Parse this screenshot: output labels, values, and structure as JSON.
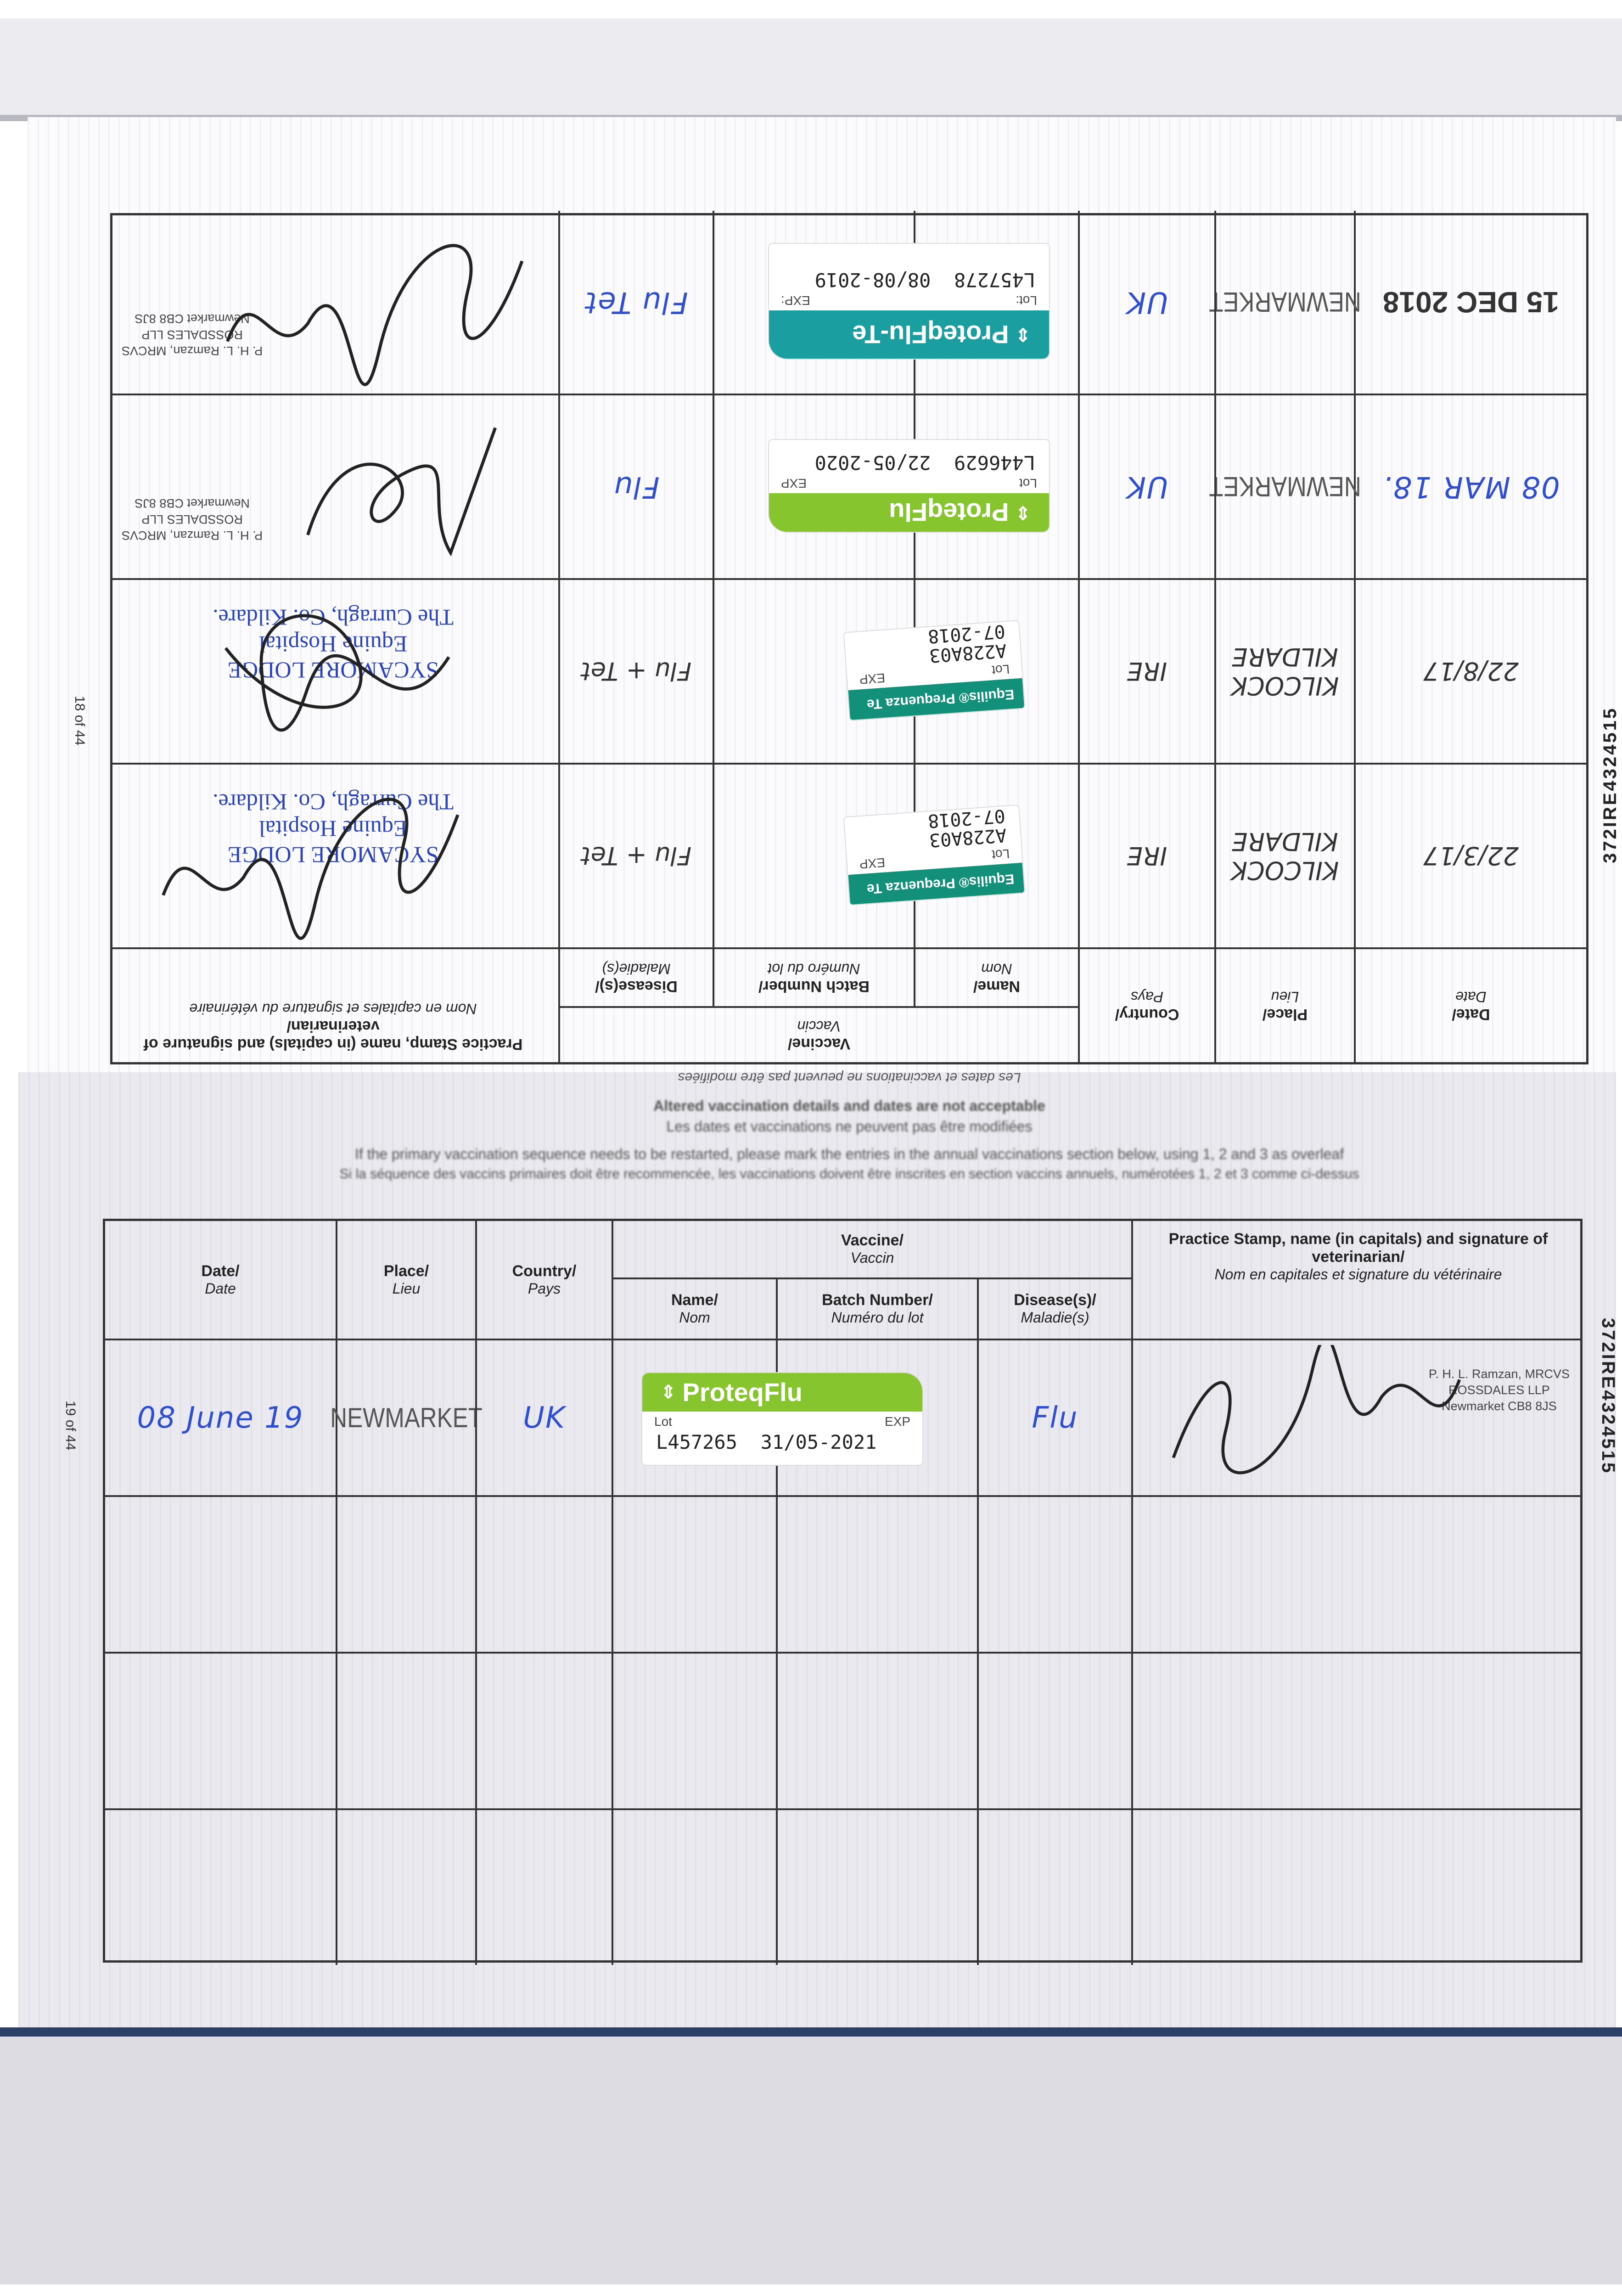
{
  "passport_number": "372IRE4324515",
  "headers": {
    "date": [
      "Date/",
      "Date"
    ],
    "place": [
      "Place/",
      "Lieu"
    ],
    "country": [
      "Country/",
      "Pays"
    ],
    "vaccine": [
      "Vaccine/",
      "Vaccin"
    ],
    "name": [
      "Name/",
      "Nom"
    ],
    "batch": [
      "Batch Number/",
      "Numéro du lot"
    ],
    "disease": [
      "Disease(s)/",
      "Maladie(s)"
    ],
    "stamp": [
      "Practice Stamp, name (in capitals) and signature of veterinarian/",
      "Nom en capitales et signature du vétérinaire"
    ]
  },
  "page18": {
    "page_label": "18 of 44",
    "notice": "Les dates et vaccinations ne peuvent pas être modifiées",
    "rows": [
      {
        "date": "22/3/17",
        "date_style": "hand-dark",
        "place": "KILCOCK KILDARE",
        "place_style": "hand-dark",
        "country": "IRE",
        "country_style": "hand-dark",
        "sticker": {
          "type": "equilis",
          "brand": "Equilis® Prequenza Te",
          "brand_sub": "",
          "lot_label": "Lot",
          "exp_label": "EXP",
          "lot": "A228A03",
          "exp": "07-2018",
          "color": "#12907a"
        },
        "disease": "Flu + Tet",
        "disease_style": "hand-dark",
        "stamp_type": "sycamore",
        "stamp_lines": [
          "SYCAMORE LODGE",
          "Equine Hospital",
          "The Curragh, Co. Kildare."
        ]
      },
      {
        "date": "22/8/17",
        "date_style": "hand-dark",
        "place": "KILCOCK KILDARE",
        "place_style": "hand-dark",
        "country": "IRE",
        "country_style": "hand-dark",
        "sticker": {
          "type": "equilis",
          "brand": "Equilis® Prequenza Te",
          "brand_sub": "",
          "lot_label": "Lot",
          "exp_label": "EXP",
          "lot": "A228A03",
          "exp": "07-2018",
          "color": "#12907a"
        },
        "disease": "Flu + Tet",
        "disease_style": "hand-dark",
        "stamp_type": "sycamore",
        "stamp_lines": [
          "SYCAMORE LODGE",
          "Equine Hospital",
          "The Curragh, Co. Kildare."
        ]
      },
      {
        "date": "08 MAR 18.",
        "date_style": "hand",
        "place": "NEWMARKET",
        "place_style": "placestamp",
        "country": "UK",
        "country_style": "hand",
        "sticker": {
          "type": "proteq",
          "brand": "ProteqFlu",
          "brand_sub": "",
          "lot_label": "Lot",
          "exp_label": "EXP",
          "lot": "L446629",
          "exp": "22/05-2020",
          "color": "#86c52e"
        },
        "disease": "Flu",
        "disease_style": "hand",
        "stamp_type": "ramzan",
        "stamp_lines": [
          "P. H. L. Ramzan, MRCVS",
          "ROSSDALES LLP",
          "Newmarket CB8 8JS"
        ]
      },
      {
        "date": "15 DEC 2018",
        "date_style": "datestamp",
        "place": "NEWMARKET",
        "place_style": "placestamp",
        "country": "UK",
        "country_style": "hand",
        "sticker": {
          "type": "proteq-te",
          "brand": "ProteqFlu-Te",
          "brand_sub": "",
          "lot_label": "Lot:",
          "exp_label": "EXP:",
          "lot": "L457278",
          "exp": "08/08-2019",
          "color": "#1a9ea0"
        },
        "disease": "Flu Tet",
        "disease_style": "hand",
        "stamp_type": "ramzan",
        "stamp_lines": [
          "P. H. L. Ramzan, MRCVS",
          "ROSSDALES LLP",
          "Newmarket CB8 8JS"
        ]
      }
    ]
  },
  "page19": {
    "page_label": "19 of 44",
    "notices": [
      "Altered vaccination details and dates are not acceptable",
      "Les dates et vaccinations ne peuvent pas être modifiées",
      "If the primary vaccination sequence needs to be restarted, please mark the entries in the annual vaccinations section below, using 1, 2 and 3 as overleaf",
      "Si la séquence des vaccins primaires doit être recommencée, les vaccinations doivent être inscrites en section vaccins annuels, numérotées 1, 2 et 3 comme ci-dessus"
    ],
    "rows": [
      {
        "date": "08 June 19",
        "date_style": "hand",
        "place": "NEWMARKET",
        "place_style": "placestamp",
        "country": "UK",
        "country_style": "hand",
        "sticker": {
          "type": "proteq",
          "brand": "ProteqFlu",
          "brand_sub": "",
          "lot_label": "Lot",
          "exp_label": "EXP",
          "lot": "L457265",
          "exp": "31/05-2021",
          "color": "#86c52e"
        },
        "disease": "Flu",
        "disease_style": "hand",
        "stamp_type": "ramzan",
        "stamp_lines": [
          "P. H. L. Ramzan, MRCVS",
          "ROSSDALES LLP",
          "Newmarket CB8 8JS"
        ]
      },
      {},
      {},
      {}
    ]
  }
}
